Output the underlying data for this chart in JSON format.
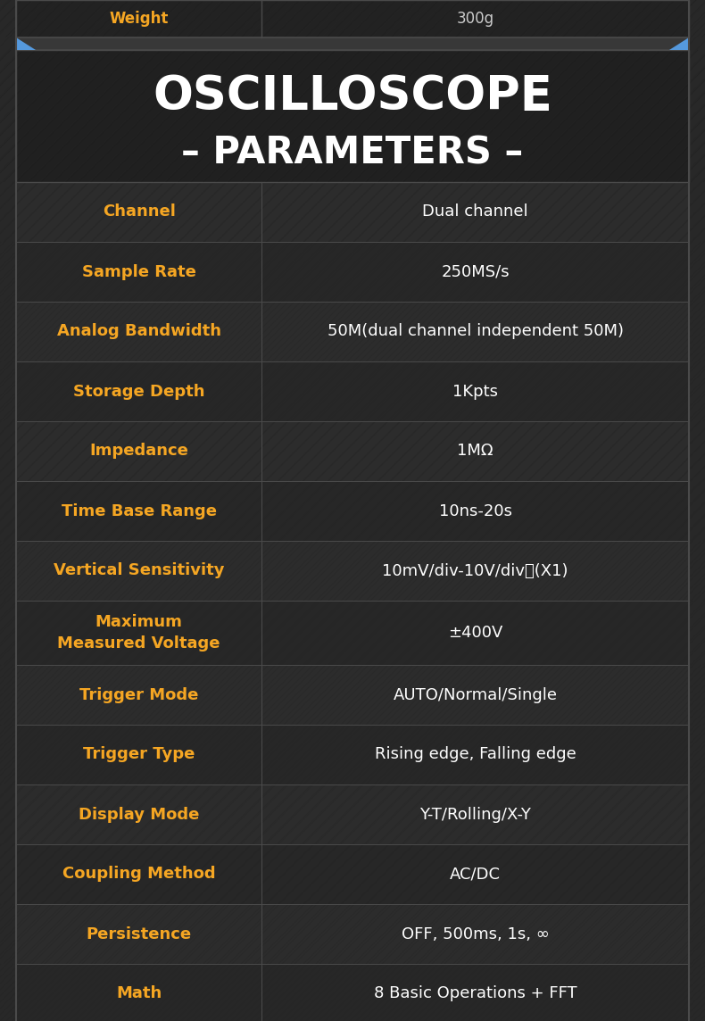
{
  "title_line1": "OSCILLOSCOPE",
  "title_line2": "– PARAMETERS –",
  "bg_color": "#282828",
  "cell_bg_even": "#2c2c2c",
  "cell_bg_odd": "#272727",
  "label_color": "#f5a623",
  "value_color": "#ffffff",
  "border_color": "#4a4a4a",
  "title_color": "#ffffff",
  "header_bg": "#202020",
  "connector_bg": "#383838",
  "top_strip_bg": "#222222",
  "top_strip_label_color": "#f5a623",
  "top_strip_value_color": "#cccccc",
  "blue_accent": "#5599dd",
  "rows": [
    {
      "label": "Channel",
      "value": "Dual channel"
    },
    {
      "label": "Sample Rate",
      "value": "250MS/s"
    },
    {
      "label": "Analog Bandwidth",
      "value": "50M(dual channel independent 50M)"
    },
    {
      "label": "Storage Depth",
      "value": "1Kpts"
    },
    {
      "label": "Impedance",
      "value": "1MΩ"
    },
    {
      "label": "Time Base Range",
      "value": "10ns-20s"
    },
    {
      "label": "Vertical Sensitivity",
      "value": "10mV/div-10V/div　(X1)"
    },
    {
      "label": "Maximum\nMeasured Voltage",
      "value": "±400V"
    },
    {
      "label": "Trigger Mode",
      "value": "AUTO/Normal/Single"
    },
    {
      "label": "Trigger Type",
      "value": "Rising edge, Falling edge"
    },
    {
      "label": "Display Mode",
      "value": "Y-T/Rolling/X-Y"
    },
    {
      "label": "Coupling Method",
      "value": "AC/DC"
    },
    {
      "label": "Persistence",
      "value": "OFF, 500ms, 1s, ∞"
    },
    {
      "label": "Math",
      "value": "8 Basic Operations + FFT"
    }
  ]
}
